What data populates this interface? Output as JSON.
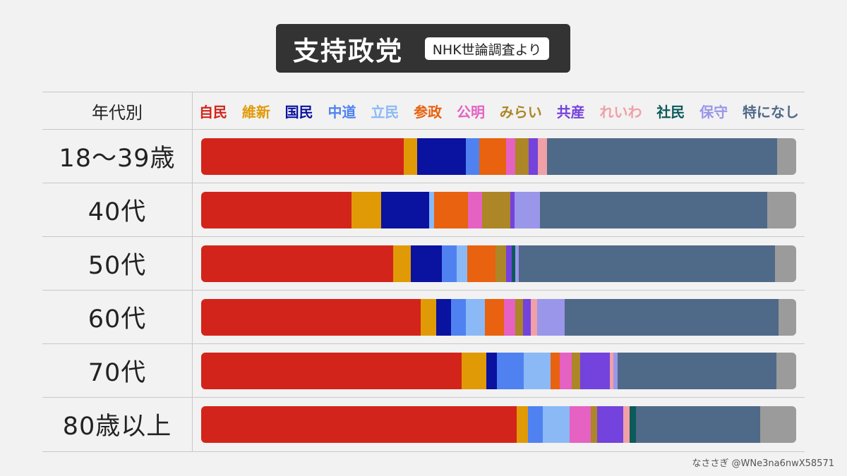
{
  "title": "支持政党",
  "source": "NHK世論調査より",
  "credit": "なささぎ @WNe3na6nwX58571",
  "chart_data": {
    "type": "bar",
    "orientation": "horizontal",
    "stacked": true,
    "normalized_percent": true,
    "category_header": "年代別",
    "categories": [
      "18〜39歳",
      "40代",
      "50代",
      "60代",
      "70代",
      "80歳以上"
    ],
    "series": [
      {
        "name": "自民",
        "color": "#d3241b",
        "values": [
          34.0,
          25.3,
          32.3,
          36.8,
          43.8,
          53.1
        ]
      },
      {
        "name": "維新",
        "color": "#e09a06",
        "values": [
          2.3,
          4.9,
          2.9,
          2.5,
          4.2,
          1.9
        ]
      },
      {
        "name": "国民",
        "color": "#0a12a0",
        "values": [
          8.2,
          8.1,
          5.3,
          2.5,
          1.8,
          0.0
        ]
      },
      {
        "name": "中道",
        "color": "#4f82f0",
        "values": [
          2.3,
          0.0,
          2.5,
          2.5,
          4.5,
          2.5
        ]
      },
      {
        "name": "立民",
        "color": "#8ab9f6",
        "values": [
          0.0,
          0.8,
          1.7,
          3.2,
          4.5,
          4.5
        ]
      },
      {
        "name": "参政",
        "color": "#e8620f",
        "values": [
          4.5,
          5.7,
          4.8,
          3.2,
          1.5,
          0.0
        ]
      },
      {
        "name": "公明",
        "color": "#e561c2",
        "values": [
          1.5,
          2.4,
          0.0,
          1.9,
          2.0,
          3.6
        ]
      },
      {
        "name": "みらい",
        "color": "#ac8627",
        "values": [
          2.3,
          4.8,
          1.7,
          1.3,
          1.5,
          1.0
        ]
      },
      {
        "name": "共産",
        "color": "#7442dc",
        "values": [
          1.5,
          0.7,
          1.0,
          1.3,
          4.9,
          4.4
        ]
      },
      {
        "name": "れいわ",
        "color": "#f0a0a6",
        "values": [
          1.5,
          0.0,
          0.0,
          1.1,
          0.7,
          1.1
        ]
      },
      {
        "name": "社民",
        "color": "#0d5a5a",
        "values": [
          0.0,
          0.0,
          0.6,
          0.0,
          0.0,
          1.0
        ]
      },
      {
        "name": "保守",
        "color": "#9a96ea",
        "values": [
          0.0,
          4.2,
          0.6,
          4.5,
          0.7,
          0.0
        ]
      },
      {
        "name": "特になし",
        "color": "#4f6988",
        "values": [
          38.7,
          38.3,
          43.1,
          35.8,
          26.7,
          21.0
        ]
      },
      {
        "name": "",
        "color": "#9b9b9b",
        "values": [
          3.2,
          4.8,
          3.5,
          3.0,
          3.3,
          6.0
        ]
      }
    ],
    "xlim": [
      0,
      100
    ],
    "grid": false,
    "legend_position": "top"
  }
}
